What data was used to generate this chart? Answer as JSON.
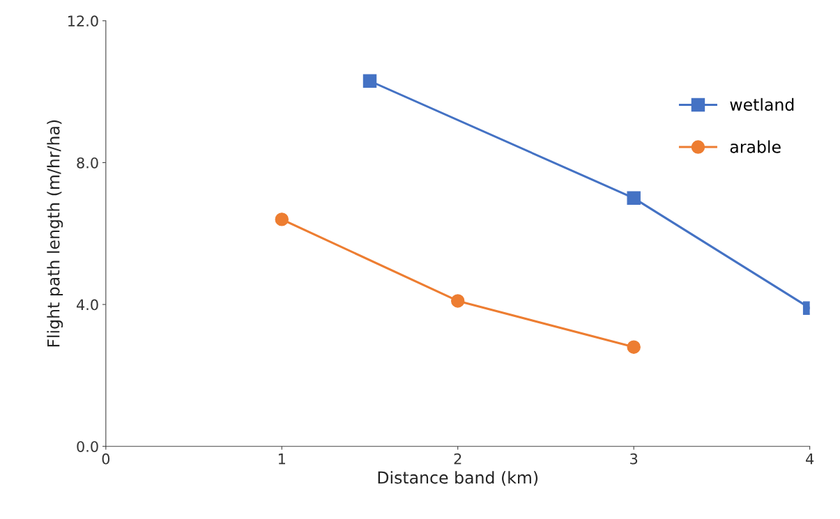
{
  "chart_data": {
    "type": "line",
    "xlabel": "Distance band (km)",
    "ylabel": "Flight path length (m/hr/ha)",
    "xlim": [
      0,
      4
    ],
    "xticks": [
      0,
      1,
      2,
      3,
      4
    ],
    "ylim": [
      0,
      12
    ],
    "yticks": [
      {
        "value": 0,
        "label": "0.0"
      },
      {
        "value": 4,
        "label": "4.0"
      },
      {
        "value": 8,
        "label": "8.0"
      },
      {
        "value": 12,
        "label": "12.0"
      }
    ],
    "grid": false,
    "legend": "right",
    "series": [
      {
        "name": "wetland",
        "color": "#4472c4",
        "marker": "square",
        "x": [
          1.5,
          3,
          4
        ],
        "values": [
          10.3,
          7.0,
          3.9
        ]
      },
      {
        "name": "arable",
        "color": "#ed7d31",
        "marker": "circle",
        "x": [
          1,
          2,
          3
        ],
        "values": [
          6.4,
          4.1,
          2.8
        ]
      }
    ]
  }
}
